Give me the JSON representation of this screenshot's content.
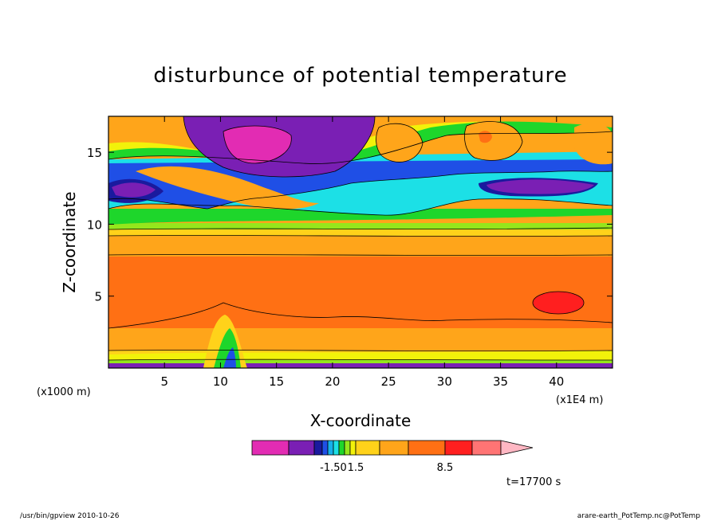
{
  "chart_data": {
    "type": "heatmap",
    "title": "disturbunce of potential temperature",
    "xlabel": "X-coordinate",
    "ylabel": "Z-coordinate",
    "x_unit": "(x1E4 m)",
    "y_unit": "(x1000 m)",
    "xlim": [
      0,
      45
    ],
    "ylim": [
      0,
      17.5
    ],
    "x_ticks": [
      5,
      10,
      15,
      20,
      25,
      30,
      35,
      40
    ],
    "y_ticks": [
      5,
      10,
      15
    ],
    "colorbar": {
      "colors": [
        "#e22cb3",
        "#7a1fb4",
        "#1a1a9e",
        "#1f4fe6",
        "#16b0ea",
        "#1ce0e6",
        "#1ed62b",
        "#95e61c",
        "#f2f20a",
        "#ffd21a",
        "#ffa51a",
        "#ff7014",
        "#ff1f1f",
        "#ff7474",
        "#ffb7c3"
      ],
      "labels": [
        {
          "text": "-1.50",
          "after_index": 4
        },
        {
          "text": "1.5",
          "after_index": 8
        },
        {
          "text": "8.5",
          "after_index": 11
        }
      ]
    },
    "time_label": "t=17700 s"
  },
  "footer": {
    "left": "/usr/bin/gpview   2010-10-26",
    "right": "arare-earth_PotTemp.nc@PotTemp"
  }
}
